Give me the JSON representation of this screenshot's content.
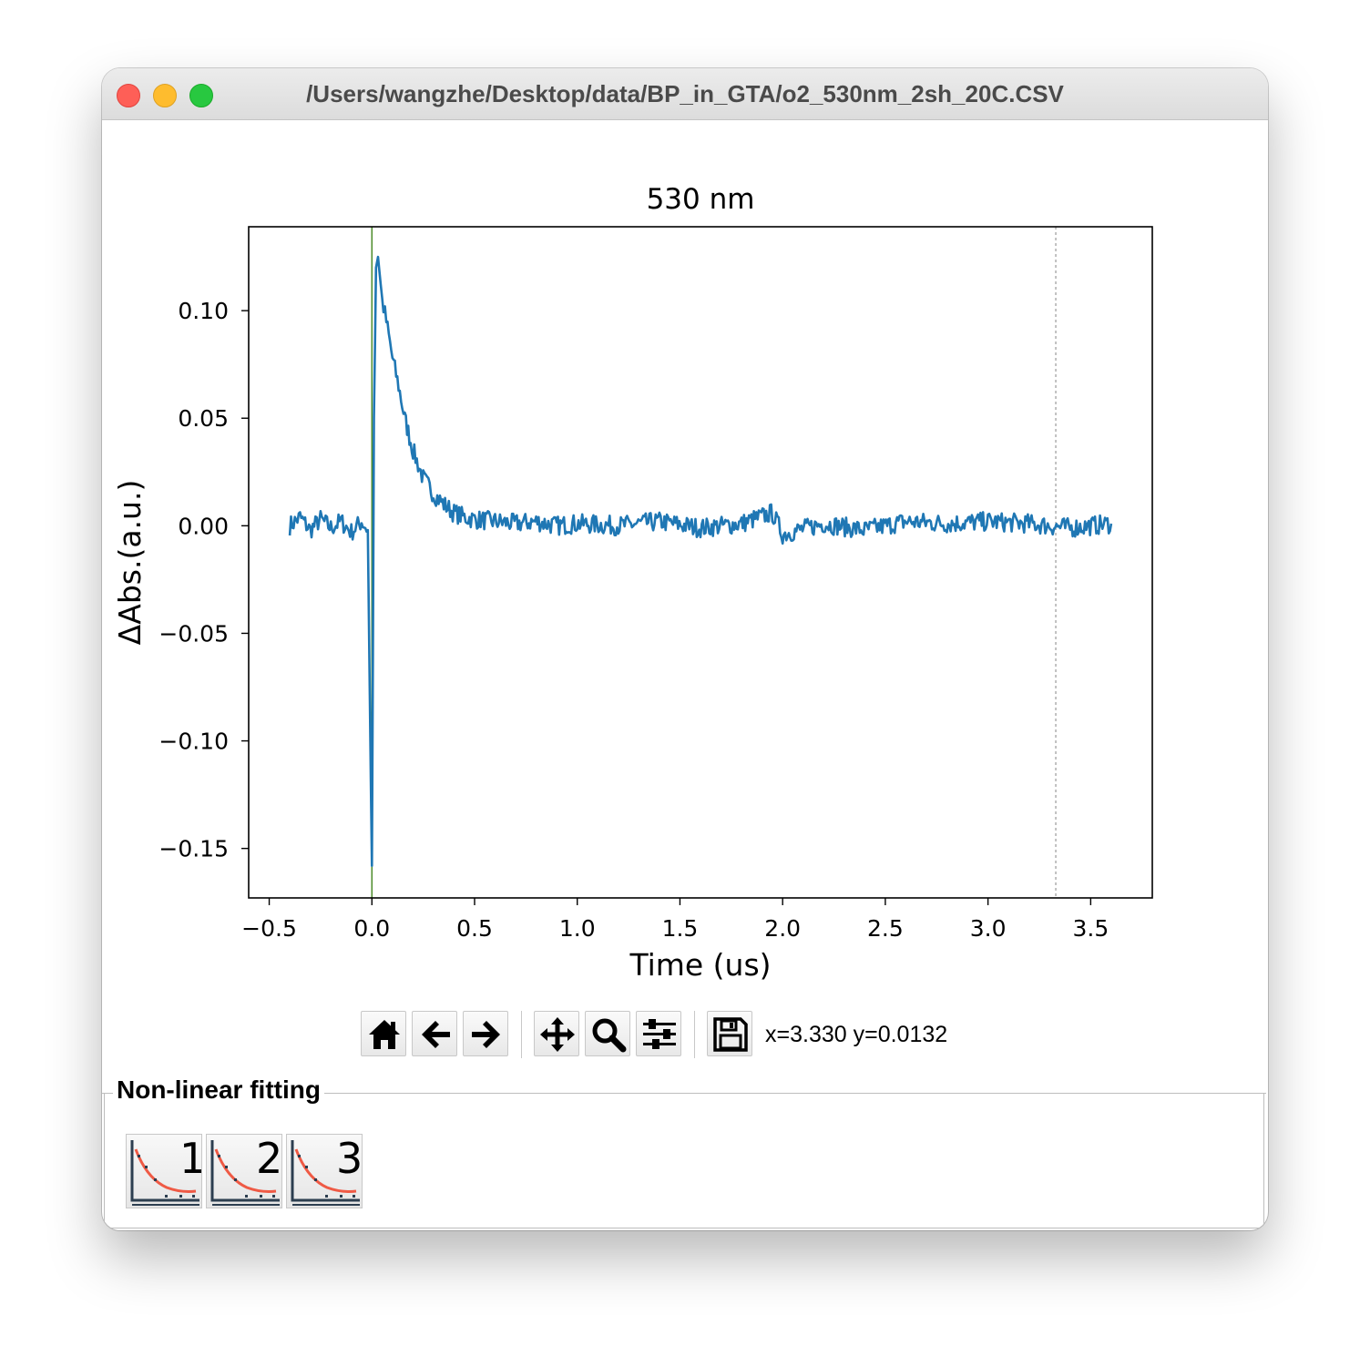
{
  "window": {
    "title": "/Users/wangzhe/Desktop/data/BP_in_GTA/o2_530nm_2sh_20C.CSV"
  },
  "toolbar": {
    "buttons": [
      "home-icon",
      "back-arrow-icon",
      "forward-arrow-icon",
      "pan-icon",
      "zoom-icon",
      "configure-subplots-icon",
      "save-icon"
    ],
    "coords": "x=3.330 y=0.0132"
  },
  "fitting": {
    "label": "Non-linear fitting",
    "buttons": [
      {
        "icon": "decay-fit-icon",
        "number": "1"
      },
      {
        "icon": "decay-fit-icon",
        "number": "2"
      },
      {
        "icon": "decay-fit-icon",
        "number": "3"
      }
    ]
  },
  "colors": {
    "trace": "#1f77b4",
    "cursor_line": "#4d8c2b",
    "dashed_line": "#999999",
    "fit_curve": "#ef5a45"
  },
  "chart_data": {
    "type": "line",
    "title": "530 nm",
    "xlabel": "Time (us)",
    "ylabel": "ΔAbs.(a.u.)",
    "xlim": [
      -0.6,
      3.8
    ],
    "ylim": [
      -0.173,
      0.139
    ],
    "xticks": [
      -0.5,
      0.0,
      0.5,
      1.0,
      1.5,
      2.0,
      2.5,
      3.0,
      3.5
    ],
    "xtick_labels": [
      "−0.5",
      "0.0",
      "0.5",
      "1.0",
      "1.5",
      "2.0",
      "2.5",
      "3.0",
      "3.5"
    ],
    "yticks": [
      0.1,
      0.05,
      0.0,
      -0.05,
      -0.1,
      -0.15
    ],
    "ytick_labels": [
      "0.10",
      "0.05",
      "0.00",
      "−0.05",
      "−0.10",
      "−0.15"
    ],
    "vertical_lines": [
      {
        "x": 0.0,
        "style": "solid"
      },
      {
        "x": 3.33,
        "style": "dashed"
      }
    ],
    "series": [
      {
        "x": [
          -0.4,
          -0.35,
          -0.3,
          -0.25,
          -0.2,
          -0.15,
          -0.1,
          -0.05,
          -0.02,
          -0.01,
          0.0,
          0.005,
          0.01,
          0.02,
          0.03,
          0.05,
          0.07,
          0.1,
          0.13,
          0.16,
          0.2,
          0.25,
          0.3,
          0.35,
          0.4,
          0.45,
          0.5,
          0.6,
          0.7,
          0.8,
          0.9,
          1.0,
          1.2,
          1.4,
          1.6,
          1.8,
          1.95,
          2.0,
          2.2,
          2.4,
          2.6,
          2.8,
          3.0,
          3.2,
          3.4,
          3.6
        ],
        "y": [
          0.0,
          0.004,
          -0.002,
          0.003,
          -0.001,
          0.002,
          -0.003,
          0.002,
          -0.002,
          -0.08,
          -0.158,
          -0.06,
          0.05,
          0.12,
          0.125,
          0.105,
          0.095,
          0.078,
          0.065,
          0.05,
          0.035,
          0.022,
          0.015,
          0.01,
          0.006,
          0.004,
          0.003,
          0.002,
          0.001,
          0.002,
          0.0,
          0.001,
          0.0,
          0.002,
          -0.001,
          0.001,
          0.006,
          -0.004,
          0.001,
          -0.002,
          0.002,
          0.001,
          0.002,
          0.001,
          -0.001,
          0.001
        ]
      }
    ]
  }
}
